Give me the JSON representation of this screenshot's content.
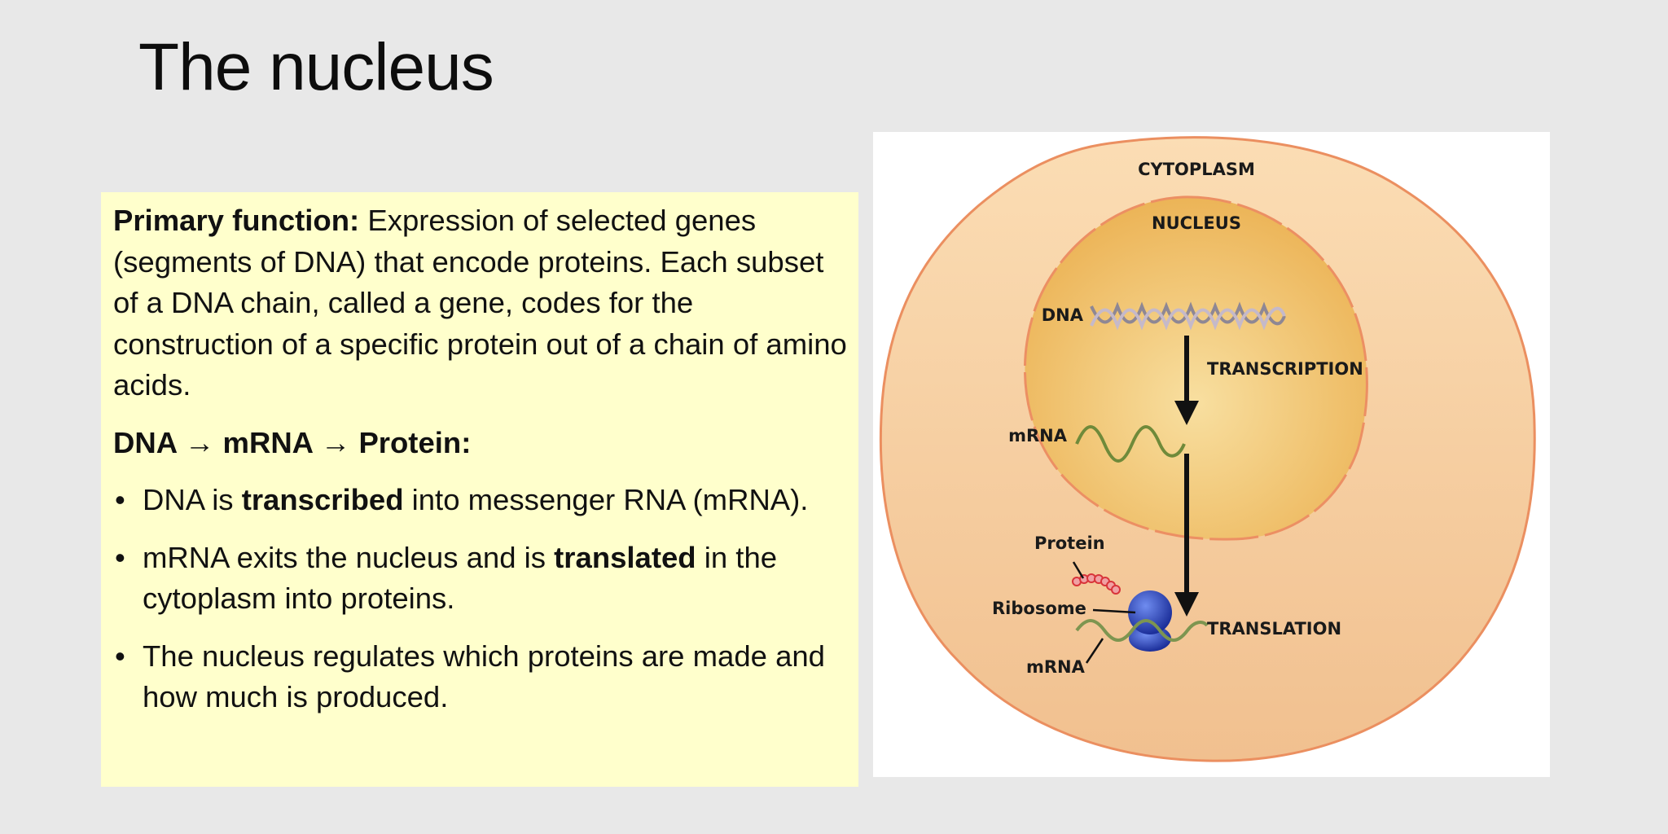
{
  "slide": {
    "title": "The nucleus"
  },
  "text_panel": {
    "intro_label": "Primary function:",
    "intro_text": "Expression of selected genes (segments of DNA) that encode proteins. Each subset of a DNA chain, called a gene, codes for the construction of a specific protein out of a chain of amino acids.",
    "flow_heading": "DNA → mRNA → Protein:",
    "bullets": [
      {
        "before": "DNA is ",
        "bold": "transcribed",
        "after": " into messenger RNA (mRNA)."
      },
      {
        "before": "mRNA exits the nucleus and is ",
        "bold": "translated",
        "after": " in the cytoplasm into proteins."
      },
      {
        "before": "The nucleus regulates which proteins are made and how much is produced.",
        "bold": "",
        "after": ""
      }
    ]
  },
  "diagram": {
    "cytoplasm_label": "CYTOPLASM",
    "nucleus_label": "NUCLEUS",
    "dna_label": "DNA",
    "transcription_label": "TRANSCRIPTION",
    "mrna_label_nucleus": "mRNA",
    "protein_label": "Protein",
    "ribosome_label": "Ribosome",
    "translation_label": "TRANSLATION",
    "mrna_label_cytoplasm": "mRNA",
    "colors": {
      "cytoplasm_fill": "#f4c99a",
      "cytoplasm_stroke": "#e88a5a",
      "nucleus_fill": "#f0bb5e",
      "dna_strand": "#9a8fa0",
      "mrna_strand": "#6f8a3a",
      "ribosome": "#2a45b8",
      "protein_beads": "#e8454a"
    }
  }
}
